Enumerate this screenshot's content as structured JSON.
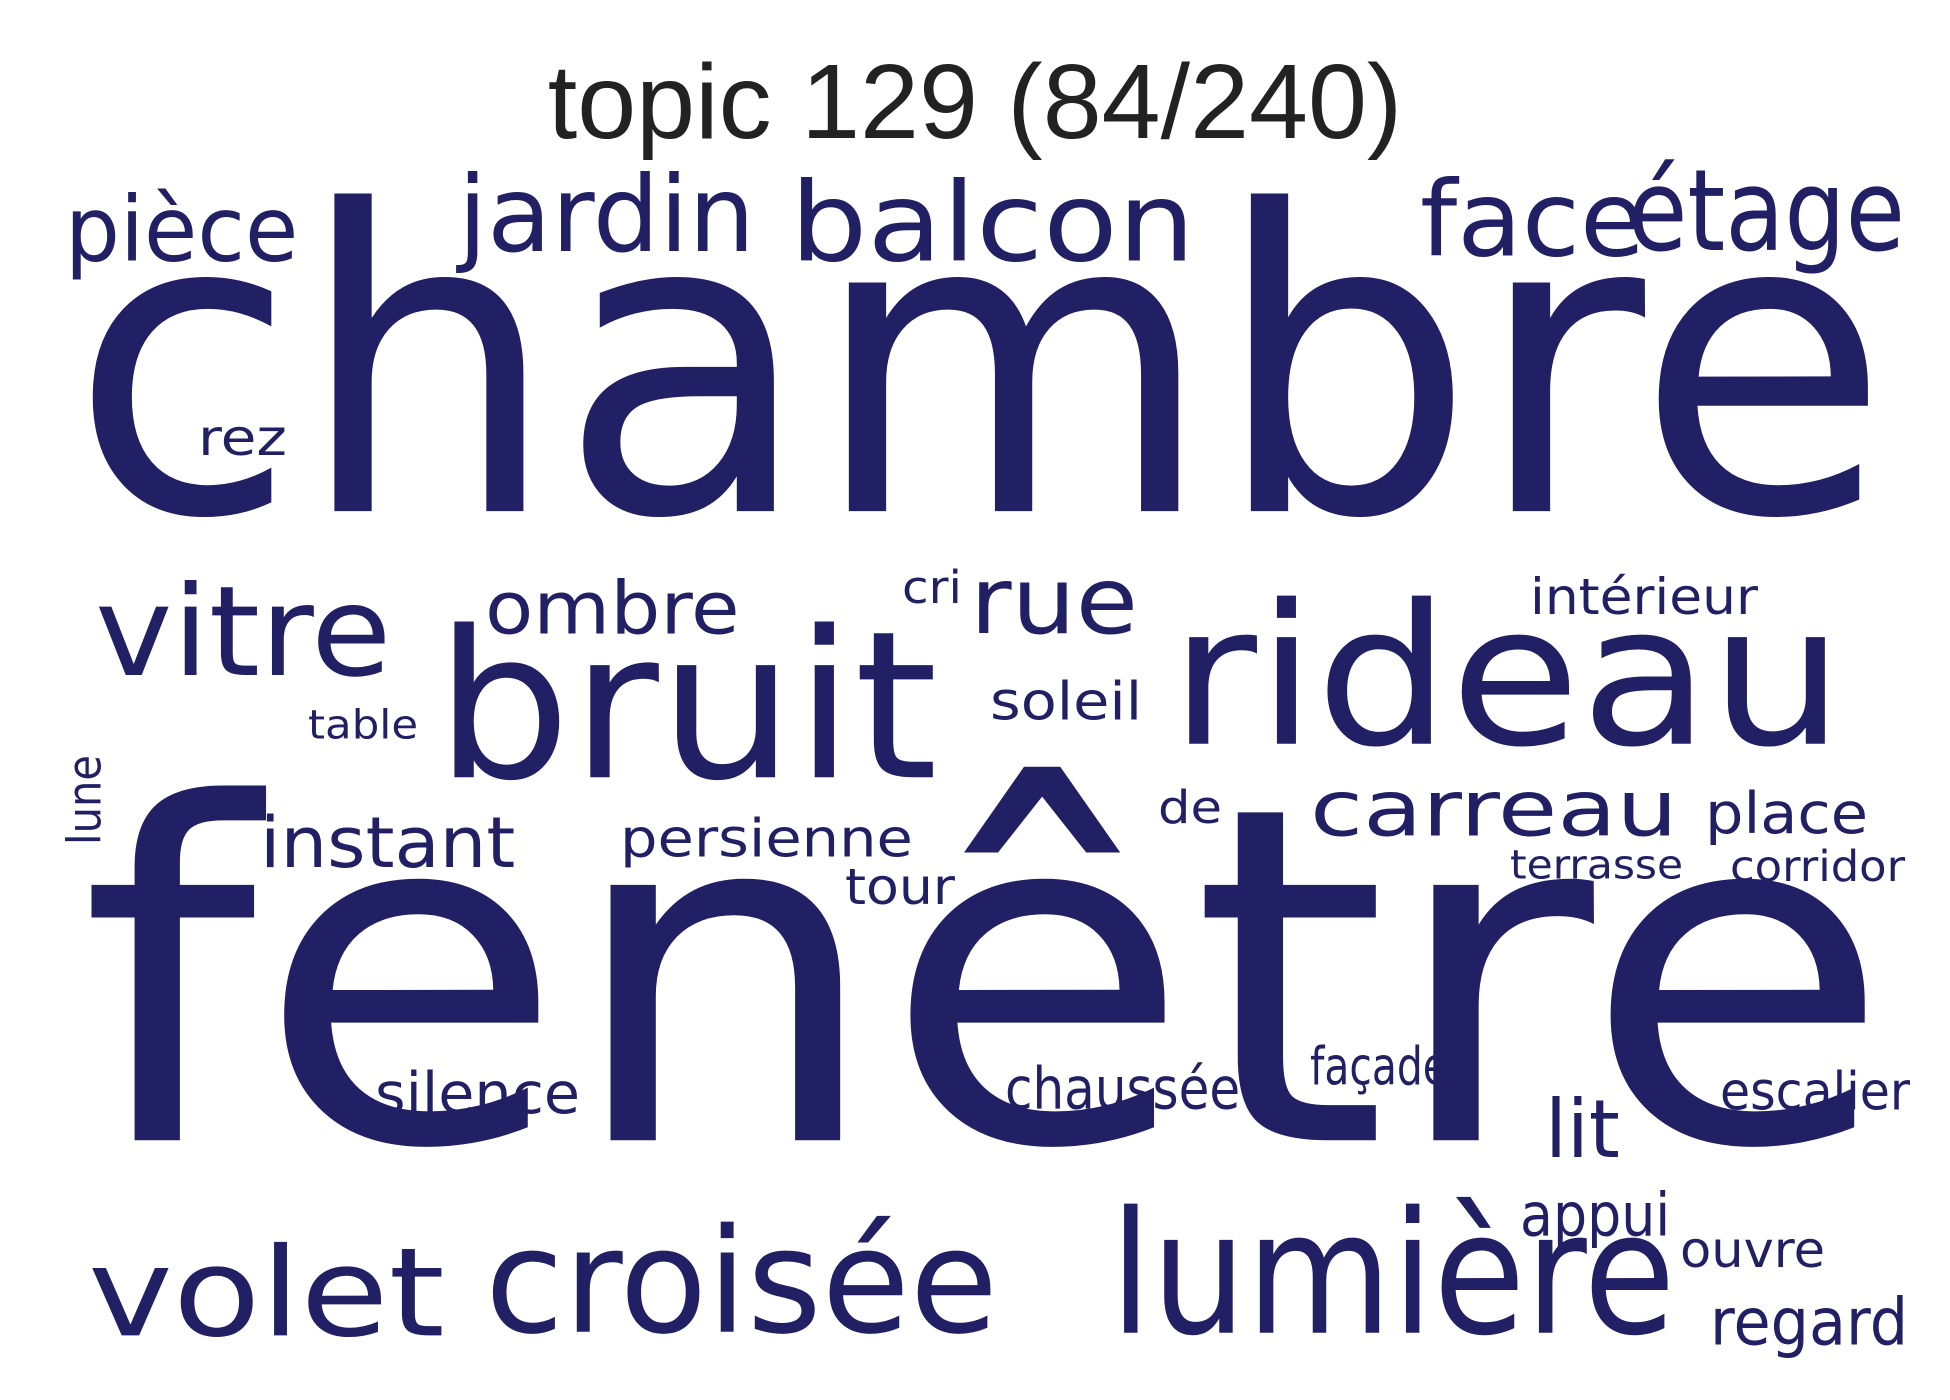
{
  "title": "topic 129 (84/240)",
  "colors": {
    "word": "#212064",
    "title": "#222222",
    "background": "#ffffff"
  },
  "words": {
    "chambre": "chambre",
    "fenetre": "fenêtre",
    "balcon": "balcon",
    "jardin": "jardin",
    "piece": "pièce",
    "face": "face",
    "etage": "étage",
    "rez": "rez",
    "vitre": "vitre",
    "ombre": "ombre",
    "cri": "cri",
    "rue": "rue",
    "bruit": "bruit",
    "rideau": "rideau",
    "interieur": "intérieur",
    "table": "table",
    "soleil": "soleil",
    "lune": "lune",
    "instant": "instant",
    "persienne": "persienne",
    "de": "de",
    "carreau": "carreau",
    "place": "place",
    "terrasse": "terrasse",
    "corridor": "corridor",
    "tour": "tour",
    "silence": "silence",
    "chaussee": "chaussée",
    "facade": "façade",
    "escalier": "escalier",
    "lit": "lit",
    "appui": "appui",
    "ouvre": "ouvre",
    "volet": "volet",
    "croisee": "croisée",
    "lumiere": "lumière",
    "regard": "regard"
  }
}
